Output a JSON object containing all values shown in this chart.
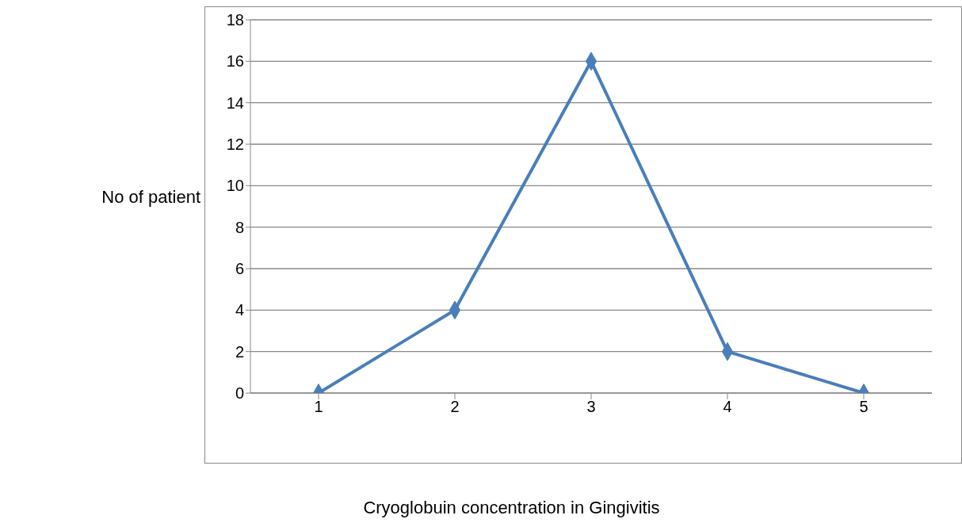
{
  "chart_data": {
    "type": "line",
    "xlabel": "Cryoglobuin concentration in Gingivitis",
    "ylabel": "No of patient",
    "categories": [
      "1",
      "2",
      "3",
      "4",
      "5"
    ],
    "series": [
      {
        "color": "#4a7ebb",
        "values": [
          0,
          4,
          16,
          2,
          0
        ]
      }
    ],
    "ylim": [
      0,
      18
    ],
    "yticks": [
      0,
      2,
      4,
      6,
      8,
      10,
      12,
      14,
      16,
      18
    ],
    "grid": "y",
    "marker": "diamond",
    "line_style": "solid"
  }
}
